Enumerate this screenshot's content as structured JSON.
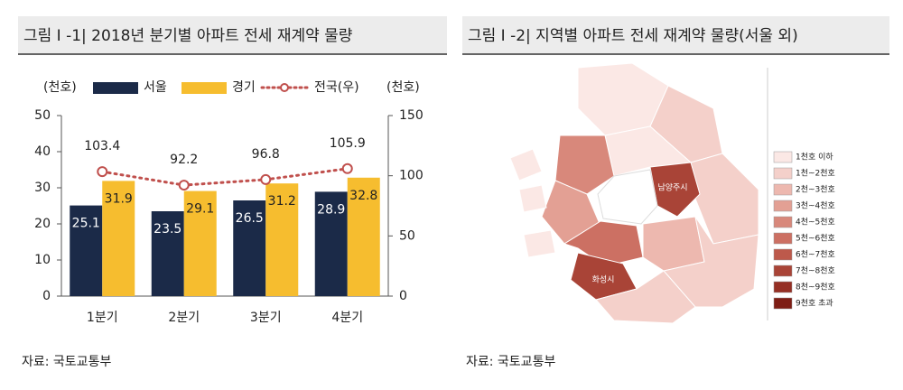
{
  "chart_data": {
    "type": "bar",
    "title": "그림 Ⅰ -1| 2018년 분기별 아파트 전세 재계약 물량",
    "y_label": "(천호)",
    "y2_label": "(천호)",
    "categories": [
      "1분기",
      "2분기",
      "3분기",
      "4분기"
    ],
    "series": [
      {
        "name": "서울",
        "color": "#1b2a48",
        "values": [
          25.1,
          23.5,
          26.5,
          28.9
        ]
      },
      {
        "name": "경기",
        "color": "#f6bd2f",
        "values": [
          31.9,
          29.1,
          31.2,
          32.8
        ]
      },
      {
        "name": "전국(우)",
        "color": "#c0504d",
        "axis": "y2",
        "type": "line",
        "values": [
          103.4,
          92.2,
          96.8,
          105.9
        ]
      }
    ],
    "ylim": [
      0,
      50
    ],
    "yticks": [
      0,
      10,
      20,
      30,
      40,
      50
    ],
    "y2lim": [
      0,
      150
    ],
    "y2ticks": [
      0,
      50,
      100,
      150
    ],
    "source": "자료: 국토교통부"
  },
  "map": {
    "title": "그림 Ⅰ -2| 지역별 아파트 전세 재계약 물량(서울 외)",
    "legend": [
      {
        "label": "1천호 이하",
        "color": "#fbe8e5"
      },
      {
        "label": "1천~2천호",
        "color": "#f4d0ca"
      },
      {
        "label": "2천~3천호",
        "color": "#edb8af"
      },
      {
        "label": "3천~4천호",
        "color": "#e3a094"
      },
      {
        "label": "4천~5천호",
        "color": "#d8887b"
      },
      {
        "label": "5천~6천호",
        "color": "#cc7063"
      },
      {
        "label": "6천~7천호",
        "color": "#bd594b"
      },
      {
        "label": "7천~8천호",
        "color": "#a94437"
      },
      {
        "label": "8천~9천호",
        "color": "#952f24"
      },
      {
        "label": "9천호 초과",
        "color": "#7e1d14"
      }
    ],
    "region_labels": [
      "남양주시",
      "화성시"
    ],
    "source": "자료: 국토교통부"
  }
}
